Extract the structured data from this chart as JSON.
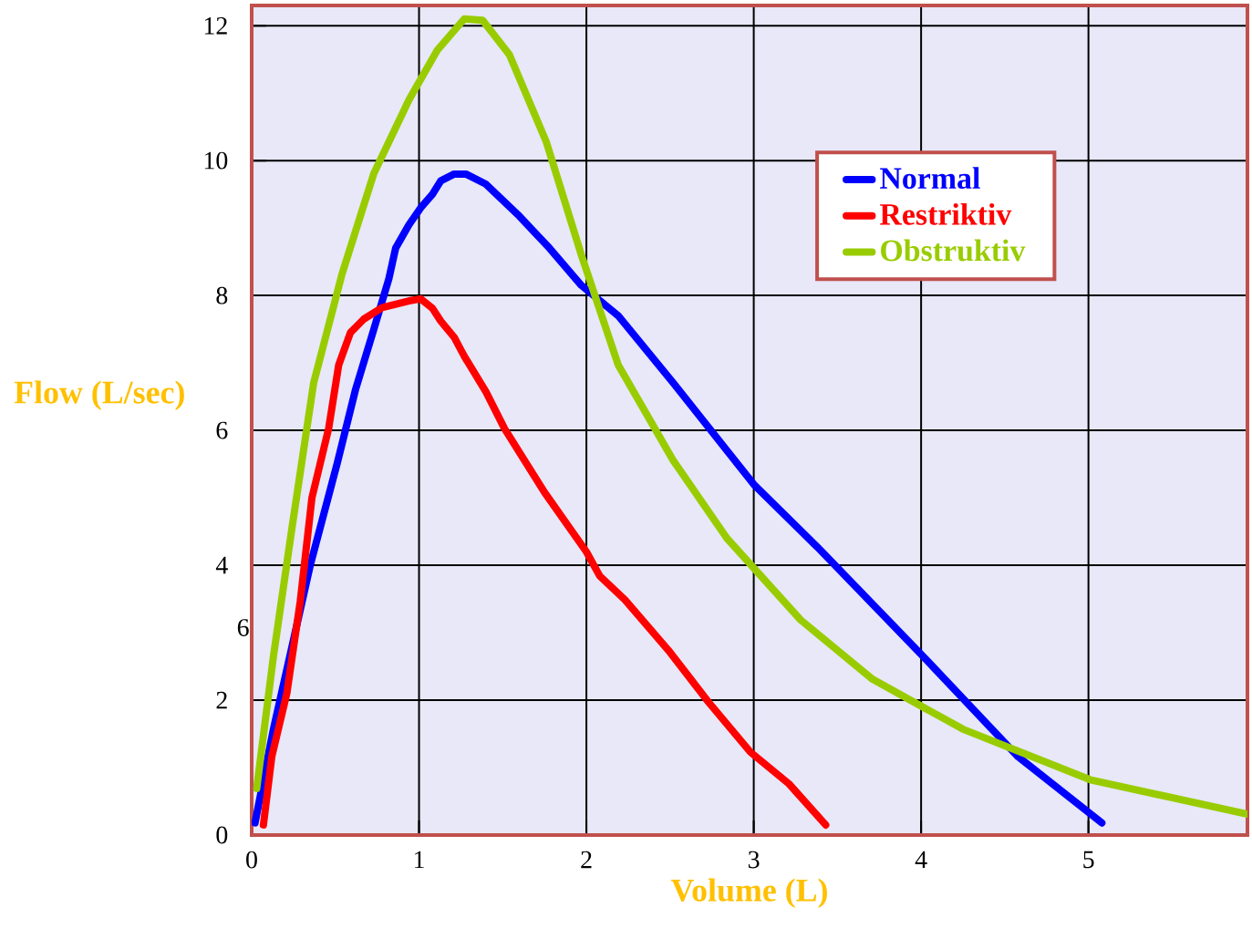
{
  "chart_data": {
    "type": "line",
    "xlabel": "Volume (L)",
    "ylabel": "Flow (L/sec)",
    "xlim": [
      0,
      5.95
    ],
    "ylim": [
      0,
      12.3
    ],
    "xticks": [
      0,
      1,
      2,
      3,
      4,
      5
    ],
    "yticks": [
      0,
      2,
      4,
      6,
      8,
      10,
      12
    ],
    "grid": true,
    "legend": "top right",
    "line_style": "solid",
    "annotations": [
      "6"
    ],
    "series": [
      {
        "name": "Normal",
        "color": "#0000ff",
        "x": [
          0.02,
          0.13,
          0.35,
          0.51,
          0.62,
          0.73,
          0.82,
          0.86,
          0.94,
          1.01,
          1.08,
          1.13,
          1.21,
          1.28,
          1.4,
          1.59,
          1.78,
          1.97,
          2.19,
          2.52,
          3.0,
          3.38,
          4.0,
          4.58,
          5.08
        ],
        "values": [
          0.18,
          1.57,
          4.0,
          5.5,
          6.6,
          7.5,
          8.25,
          8.7,
          9.05,
          9.3,
          9.5,
          9.7,
          9.8,
          9.8,
          9.65,
          9.2,
          8.7,
          8.15,
          7.7,
          6.7,
          5.2,
          4.27,
          2.68,
          1.16,
          0.18
        ]
      },
      {
        "name": "Restriktiv",
        "color": "#ff0000",
        "x": [
          0.07,
          0.12,
          0.21,
          0.29,
          0.36,
          0.46,
          0.52,
          0.59,
          0.67,
          0.78,
          0.94,
          1.01,
          1.08,
          1.13,
          1.21,
          1.27,
          1.4,
          1.51,
          1.75,
          2.0,
          2.08,
          2.23,
          2.49,
          2.73,
          2.98,
          3.21,
          3.43
        ],
        "values": [
          0.15,
          1.16,
          2.1,
          3.46,
          5.0,
          6.03,
          6.97,
          7.45,
          7.65,
          7.82,
          7.92,
          7.95,
          7.81,
          7.62,
          7.38,
          7.1,
          6.57,
          6.03,
          5.08,
          4.2,
          3.84,
          3.49,
          2.74,
          1.97,
          1.23,
          0.76,
          0.15
        ]
      },
      {
        "name": "Obstruktiv",
        "color": "#99cc00",
        "x": [
          0.03,
          0.13,
          0.24,
          0.37,
          0.54,
          0.73,
          0.94,
          1.11,
          1.27,
          1.38,
          1.54,
          1.76,
          1.97,
          2.19,
          2.52,
          2.84,
          3.28,
          3.71,
          4.25,
          5.01,
          5.95
        ],
        "values": [
          0.69,
          2.65,
          4.54,
          6.7,
          8.32,
          9.81,
          10.9,
          11.64,
          12.1,
          12.08,
          11.57,
          10.28,
          8.6,
          6.97,
          5.55,
          4.4,
          3.19,
          2.31,
          1.57,
          0.82,
          0.31
        ]
      }
    ]
  }
}
